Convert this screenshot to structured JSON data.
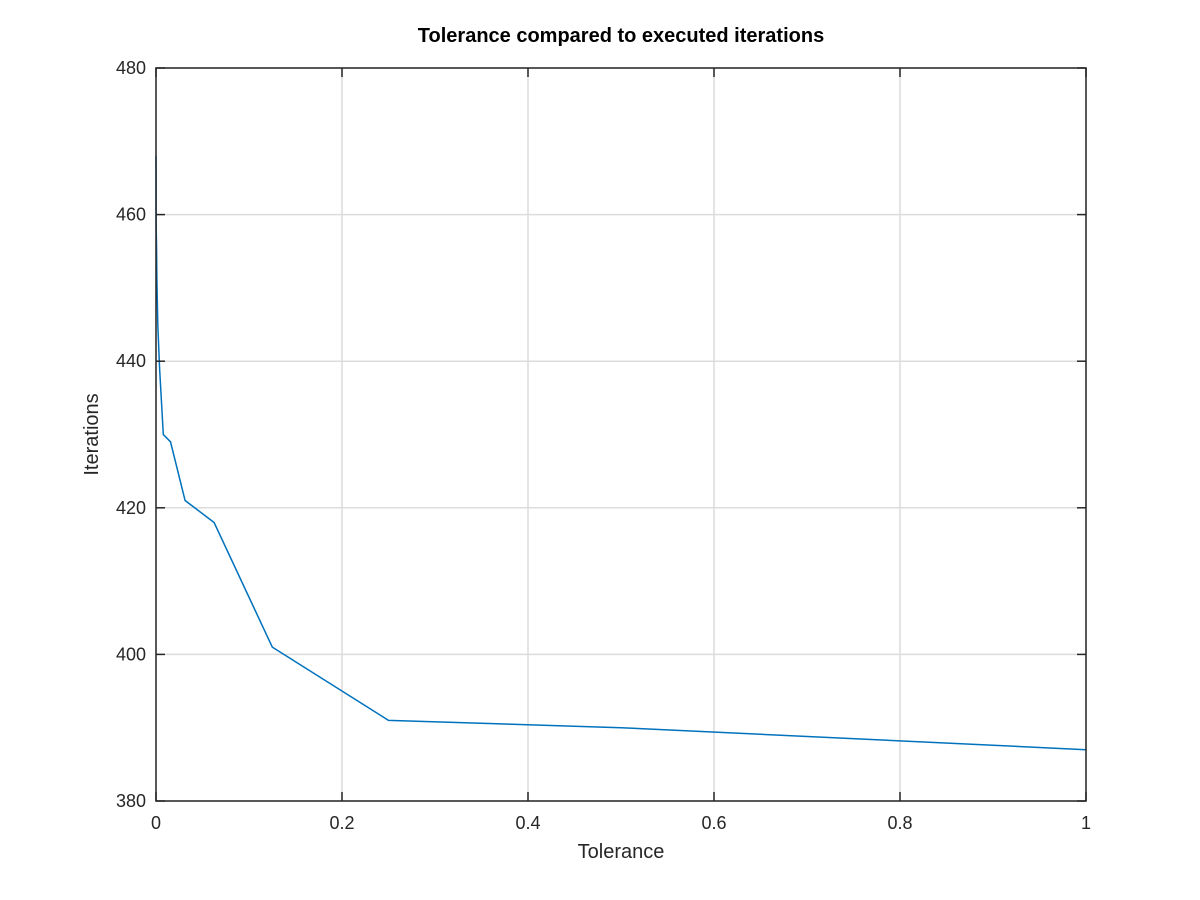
{
  "chart_data": {
    "type": "line",
    "title": "Tolerance compared to executed iterations",
    "xlabel": "Tolerance",
    "ylabel": "Iterations",
    "xlim": [
      0,
      1
    ],
    "ylim": [
      380,
      480
    ],
    "xticks": [
      0,
      0.2,
      0.4,
      0.6,
      0.8,
      1
    ],
    "xtick_labels": [
      "0",
      "0.2",
      "0.4",
      "0.6",
      "0.8",
      "1"
    ],
    "yticks": [
      380,
      400,
      420,
      440,
      460,
      480
    ],
    "ytick_labels": [
      "380",
      "400",
      "420",
      "440",
      "460",
      "480"
    ],
    "grid": true,
    "series": [
      {
        "color": "#0072bd",
        "x": [
          3.05e-05,
          6.1e-05,
          0.000122,
          0.000244,
          0.000488,
          0.000977,
          0.00195,
          0.00391,
          0.00781,
          0.0156,
          0.03125,
          0.0625,
          0.125,
          0.25,
          0.5,
          1
        ],
        "y": [
          468,
          465,
          462,
          458,
          456,
          451,
          445,
          439,
          430,
          429,
          421,
          418,
          401,
          391,
          390,
          387
        ]
      }
    ]
  }
}
